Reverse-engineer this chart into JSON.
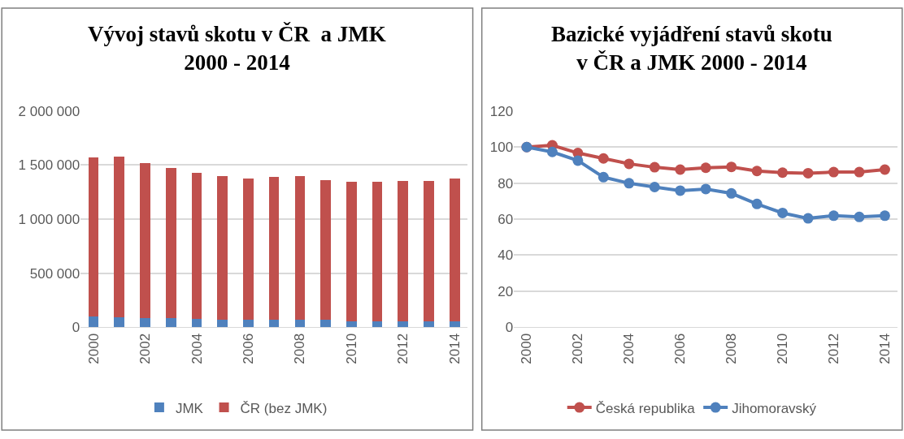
{
  "chart_data": [
    {
      "type": "bar",
      "title": "Vývoj stavů skotu v ČR  a JMK\n2000 - 2014",
      "stacked": true,
      "x": [
        2000,
        2001,
        2002,
        2003,
        2004,
        2005,
        2006,
        2007,
        2008,
        2009,
        2010,
        2011,
        2012,
        2013,
        2014
      ],
      "series": [
        {
          "name": "JMK",
          "color": "#4f81bd",
          "values": [
            95000,
            92000,
            85000,
            80000,
            75000,
            72000,
            70000,
            72000,
            70000,
            65000,
            57000,
            57000,
            57000,
            57000,
            57000
          ]
        },
        {
          "name": "ČR (bez JMK)",
          "color": "#c0504d",
          "values": [
            1475000,
            1490000,
            1435000,
            1395000,
            1353000,
            1326000,
            1303000,
            1318000,
            1330000,
            1296000,
            1291000,
            1286000,
            1296000,
            1296000,
            1316000
          ]
        }
      ],
      "xlim": [
        1999.5,
        2014.5
      ],
      "xticks": [
        2000,
        2002,
        2004,
        2006,
        2008,
        2010,
        2012,
        2014
      ],
      "ylim": [
        0,
        2000000
      ],
      "yticks": [
        0,
        {
          "value": 500000,
          "label": "500 000"
        },
        {
          "value": 1000000,
          "label": "1 000 000"
        },
        {
          "value": 1500000,
          "label": "1 500 000"
        },
        {
          "value": 2000000,
          "label": "2 000 000"
        }
      ],
      "grid": "y",
      "legend": "bottom"
    },
    {
      "type": "line",
      "title": "Bazické vyjádření stavů skotu\nv ČR a JMK 2000 - 2014",
      "x": [
        2000,
        2001,
        2002,
        2003,
        2004,
        2005,
        2006,
        2007,
        2008,
        2009,
        2010,
        2011,
        2012,
        2013,
        2014
      ],
      "series": [
        {
          "name": "Česká republika",
          "color": "#c0504d",
          "values": [
            100,
            101,
            96.7,
            93.7,
            90.7,
            88.8,
            87.5,
            88.5,
            89,
            86.7,
            85.8,
            85.5,
            86.1,
            86.1,
            87.5
          ]
        },
        {
          "name": "Jihomoravský",
          "color": "#4f81bd",
          "values": [
            100,
            97.3,
            92.5,
            83.3,
            79.9,
            77.8,
            75.8,
            76.7,
            74.3,
            68.4,
            63.4,
            60.4,
            61.9,
            61.2,
            61.9
          ]
        }
      ],
      "xlim": [
        1999.5,
        2014.5
      ],
      "xticks": [
        2000,
        2002,
        2004,
        2006,
        2008,
        2010,
        2012,
        2014
      ],
      "ylim": [
        0,
        120
      ],
      "yticks": [
        0,
        20,
        40,
        60,
        80,
        100,
        120
      ],
      "grid": "y",
      "legend": "bottom",
      "marker": "circle",
      "line_style": "solid"
    }
  ]
}
